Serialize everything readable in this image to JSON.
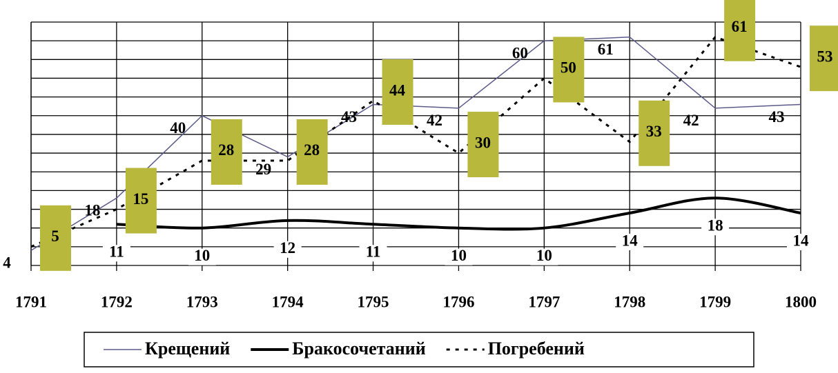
{
  "chart_data": {
    "type": "line",
    "categories": [
      "1791",
      "1792",
      "1793",
      "1794",
      "1795",
      "1796",
      "1797",
      "1798",
      "1799",
      "1800"
    ],
    "series": [
      {
        "name": "Крещений",
        "color": "#5a5a8a",
        "style": "thin",
        "values": [
          4,
          18,
          40,
          29,
          43,
          42,
          60,
          61,
          42,
          43
        ]
      },
      {
        "name": "Бракосочетаний",
        "color": "#000000",
        "style": "thick",
        "values": [
          null,
          11,
          10,
          12,
          11,
          10,
          10,
          14,
          18,
          14
        ]
      },
      {
        "name": "Погребений",
        "color": "#000000",
        "style": "dotted",
        "label_box": "#b8b83c",
        "values": [
          5,
          15,
          28,
          28,
          44,
          30,
          50,
          33,
          61,
          53
        ]
      }
    ],
    "ylim": [
      0,
      65
    ],
    "yticks": [
      0,
      5,
      10,
      15,
      20,
      25,
      30,
      35,
      40,
      45,
      50,
      55,
      60,
      65
    ],
    "grid": true,
    "legend": "bottom"
  }
}
